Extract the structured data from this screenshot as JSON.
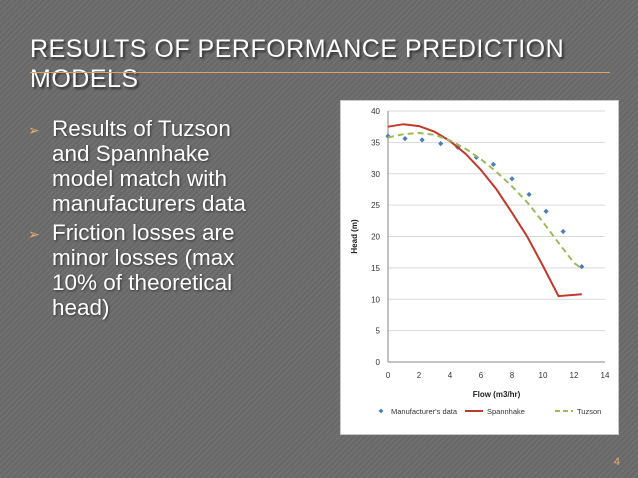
{
  "slide": {
    "title_lines": [
      "RESULTS OF PERFORMANCE PREDICTION",
      "MODELS"
    ],
    "bullets": [
      "Results of Tuzson\nand Spannhake\nmodel match with\nmanufacturers data",
      "Friction losses are\nminor losses (max\n10% of theoretical\nhead)"
    ],
    "page_number": "4",
    "colors": {
      "accent": "#e8b070",
      "background": "#6b6b6b",
      "text": "#ffffff"
    },
    "bullet_icon": "arrow-bullet-icon"
  },
  "chart_data": {
    "type": "scatter",
    "xlabel": "Flow (m3/hr)",
    "ylabel": "Head (m)",
    "xlim": [
      0,
      14
    ],
    "ylim": [
      0,
      40
    ],
    "x_ticks": [
      "0",
      "2",
      "4",
      "6",
      "8",
      "10",
      "12",
      "14"
    ],
    "y_ticks": [
      "0",
      "5",
      "10",
      "15",
      "20",
      "25",
      "30",
      "35",
      "40"
    ],
    "grid": true,
    "legend_position": "bottom",
    "series": [
      {
        "name": "Manufacturer's data",
        "kind": "markers",
        "color": "#4a7ebb",
        "points": [
          [
            0.0,
            36.0
          ],
          [
            1.1,
            35.6
          ],
          [
            2.2,
            35.4
          ],
          [
            3.4,
            34.8
          ],
          [
            4.5,
            34.2
          ],
          [
            5.7,
            32.6
          ],
          [
            6.8,
            31.5
          ],
          [
            8.0,
            29.2
          ],
          [
            9.1,
            26.7
          ],
          [
            10.2,
            24.0
          ],
          [
            11.3,
            20.8
          ],
          [
            12.5,
            15.2
          ]
        ]
      },
      {
        "name": "Spannhake",
        "kind": "line",
        "color": "#c0392b",
        "points": [
          [
            0.0,
            37.5
          ],
          [
            1.0,
            37.9
          ],
          [
            2.0,
            37.6
          ],
          [
            3.0,
            36.7
          ],
          [
            4.0,
            35.2
          ],
          [
            5.0,
            33.2
          ],
          [
            6.0,
            30.6
          ],
          [
            7.0,
            27.5
          ],
          [
            8.0,
            23.8
          ],
          [
            9.0,
            19.9
          ],
          [
            10.0,
            15.3
          ],
          [
            11.0,
            10.5
          ],
          [
            12.5,
            10.8
          ]
        ]
      },
      {
        "name": "Tuzson",
        "kind": "dashed-line",
        "color": "#9bbb59",
        "points": [
          [
            0.0,
            35.8
          ],
          [
            1.0,
            36.3
          ],
          [
            2.0,
            36.5
          ],
          [
            3.0,
            36.2
          ],
          [
            4.0,
            35.3
          ],
          [
            5.0,
            34.0
          ],
          [
            6.0,
            32.3
          ],
          [
            7.0,
            30.3
          ],
          [
            8.0,
            28.0
          ],
          [
            9.0,
            25.4
          ],
          [
            10.0,
            22.3
          ],
          [
            11.0,
            19.0
          ],
          [
            12.0,
            15.8
          ],
          [
            12.5,
            14.9
          ]
        ]
      }
    ]
  }
}
